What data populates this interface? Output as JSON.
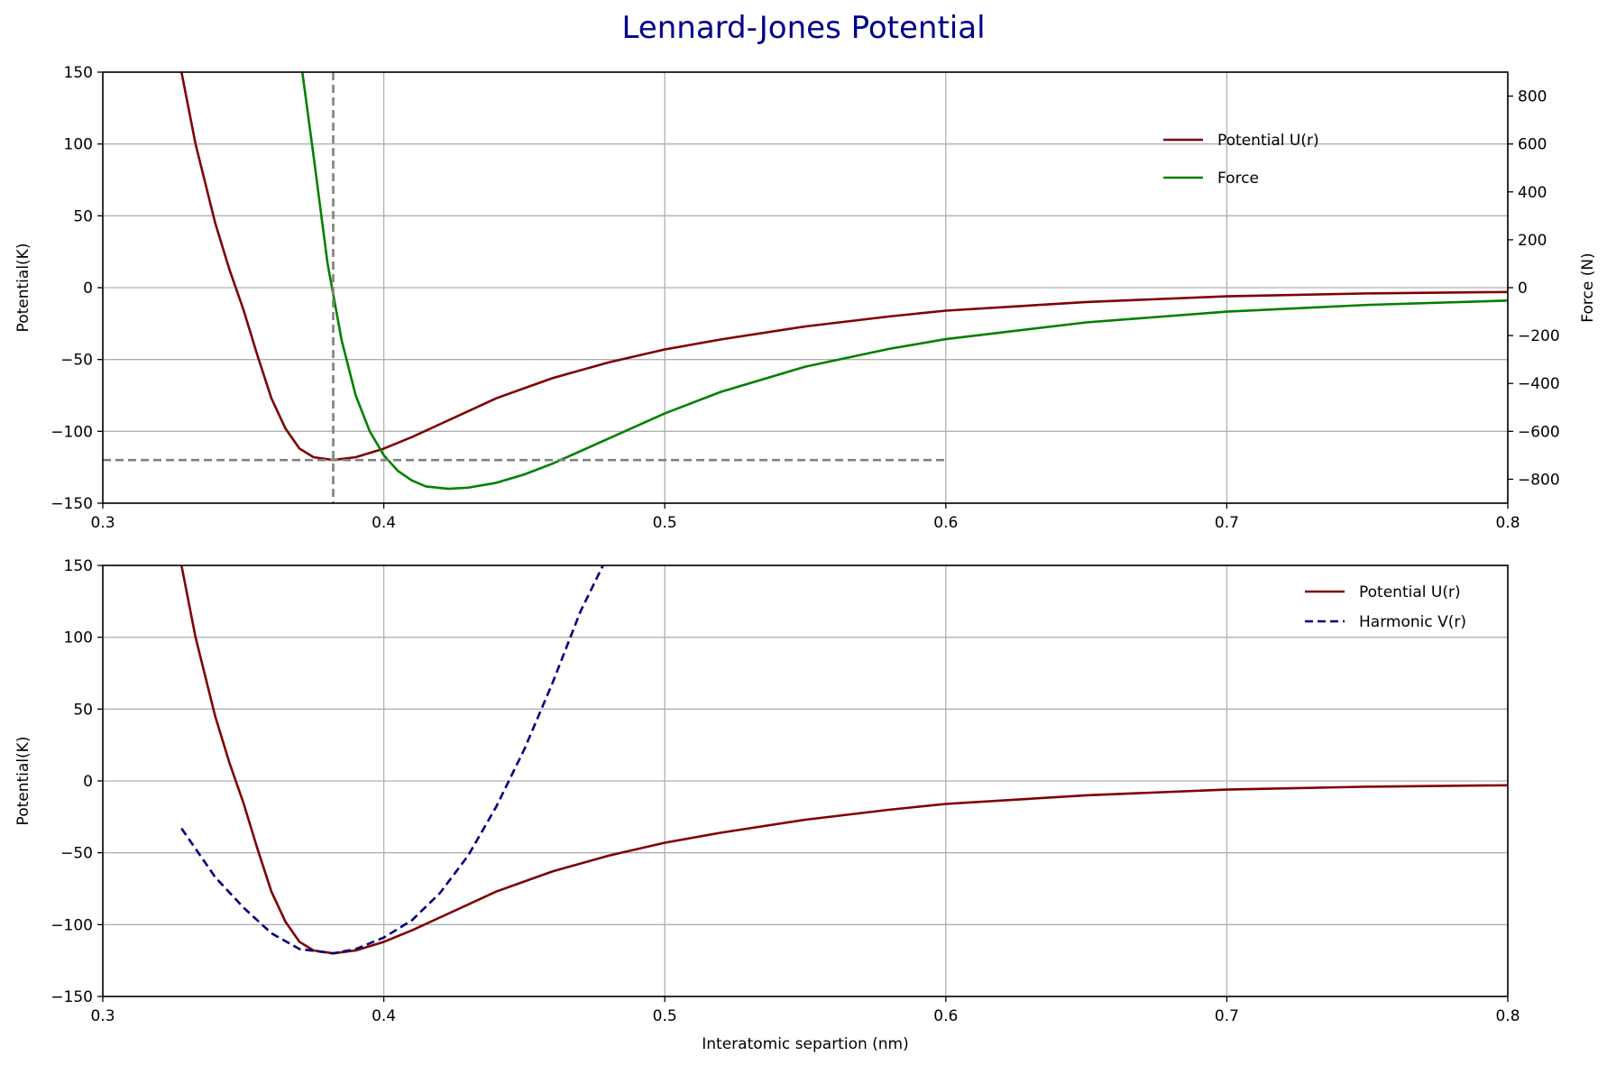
{
  "figure": {
    "title": "Lennard-Jones Potential",
    "colors": {
      "title": "#00008b",
      "potential": "#800000",
      "force": "#008000",
      "harmonic": "#000080",
      "reference_lines": "#808080",
      "grid": "#b0b0b0"
    }
  },
  "chart_data": [
    {
      "type": "line",
      "ylabel": "Potential(K)",
      "y2label": "Force (N)",
      "xlim": [
        0.3,
        0.8
      ],
      "ylim": [
        -150,
        150
      ],
      "y2lim": [
        -900,
        900
      ],
      "xticks": [
        0.3,
        0.4,
        0.5,
        0.6,
        0.7,
        0.8
      ],
      "yticks": [
        -150,
        -100,
        -50,
        0,
        50,
        100,
        150
      ],
      "y2ticks": [
        -800,
        -600,
        -400,
        -200,
        0,
        200,
        400,
        600,
        800
      ],
      "grid": true,
      "legend_position": "upper-right",
      "series": [
        {
          "name": "Potential U(r)",
          "axis": "left",
          "x": [
            0.328,
            0.333,
            0.34,
            0.345,
            0.35,
            0.355,
            0.36,
            0.365,
            0.37,
            0.375,
            0.382,
            0.39,
            0.4,
            0.41,
            0.42,
            0.43,
            0.44,
            0.45,
            0.46,
            0.48,
            0.5,
            0.52,
            0.55,
            0.58,
            0.6,
            0.65,
            0.7,
            0.75,
            0.8
          ],
          "y": [
            150,
            100,
            45,
            13,
            -15,
            -47,
            -77,
            -98,
            -112,
            -118,
            -120,
            -118,
            -112,
            -104,
            -95,
            -86,
            -77,
            -70,
            -63,
            -52,
            -43,
            -36,
            -27,
            -20,
            -16,
            -10,
            -6,
            -4,
            -3
          ]
        },
        {
          "name": "Force",
          "axis": "right",
          "x": [
            0.371,
            0.375,
            0.38,
            0.385,
            0.39,
            0.395,
            0.4,
            0.405,
            0.41,
            0.415,
            0.423,
            0.43,
            0.44,
            0.45,
            0.46,
            0.48,
            0.5,
            0.52,
            0.55,
            0.58,
            0.6,
            0.65,
            0.7,
            0.75,
            0.8
          ],
          "y": [
            900,
            550,
            100,
            -220,
            -450,
            -600,
            -700,
            -765,
            -805,
            -830,
            -840,
            -835,
            -815,
            -780,
            -735,
            -630,
            -525,
            -435,
            -330,
            -255,
            -215,
            -145,
            -100,
            -72,
            -54
          ]
        }
      ],
      "reference_lines": [
        {
          "orientation": "horizontal",
          "y": -120,
          "x_from": 0.3,
          "x_to": 0.6
        },
        {
          "orientation": "vertical",
          "x": 0.382,
          "y_from": -150,
          "y_to": 150
        }
      ]
    },
    {
      "type": "line",
      "xlabel": "Interatomic separtion (nm)",
      "ylabel": "Potential(K)",
      "xlim": [
        0.3,
        0.8
      ],
      "ylim": [
        -150,
        150
      ],
      "xticks": [
        0.3,
        0.4,
        0.5,
        0.6,
        0.7,
        0.8
      ],
      "yticks": [
        -150,
        -100,
        -50,
        0,
        50,
        100,
        150
      ],
      "grid": true,
      "legend_position": "upper-right",
      "series": [
        {
          "name": "Potential U(r)",
          "x": [
            0.328,
            0.333,
            0.34,
            0.345,
            0.35,
            0.355,
            0.36,
            0.365,
            0.37,
            0.375,
            0.382,
            0.39,
            0.4,
            0.41,
            0.42,
            0.43,
            0.44,
            0.45,
            0.46,
            0.48,
            0.5,
            0.52,
            0.55,
            0.58,
            0.6,
            0.65,
            0.7,
            0.75,
            0.8
          ],
          "y": [
            150,
            100,
            45,
            13,
            -15,
            -47,
            -77,
            -98,
            -112,
            -118,
            -120,
            -118,
            -112,
            -104,
            -95,
            -86,
            -77,
            -70,
            -63,
            -52,
            -43,
            -36,
            -27,
            -20,
            -16,
            -10,
            -6,
            -4,
            -3
          ]
        },
        {
          "name": "Harmonic V(r)",
          "dashed": true,
          "x": [
            0.328,
            0.34,
            0.35,
            0.36,
            0.37,
            0.382,
            0.39,
            0.4,
            0.41,
            0.42,
            0.43,
            0.44,
            0.45,
            0.46,
            0.47,
            0.478
          ],
          "y": [
            -33,
            -67,
            -88,
            -106,
            -117,
            -120,
            -117,
            -109,
            -97,
            -78,
            -52,
            -18,
            22,
            68,
            118,
            150
          ]
        }
      ]
    }
  ]
}
